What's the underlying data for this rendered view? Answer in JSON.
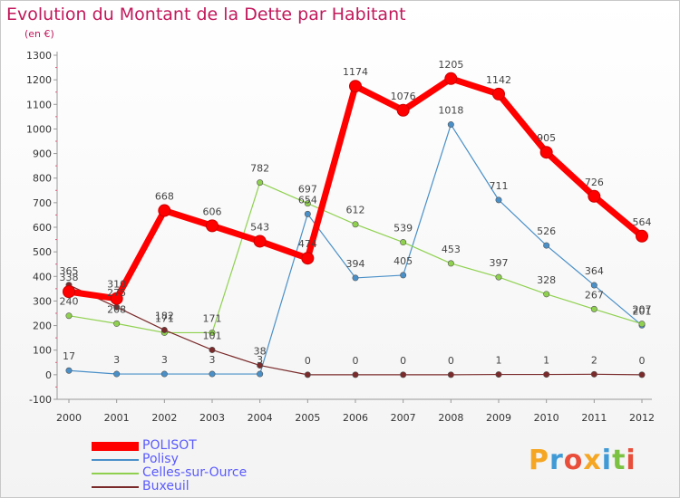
{
  "title": "Evolution du Montant de la Dette par Habitant",
  "subtitle": "(en €)",
  "logo": "Proxiti",
  "chart_data": {
    "type": "line",
    "title": "Evolution du Montant de la Dette par Habitant",
    "subtitle": "(en €)",
    "x": [
      2000,
      2001,
      2002,
      2003,
      2004,
      2005,
      2006,
      2007,
      2008,
      2009,
      2010,
      2011,
      2012
    ],
    "ylim": [
      -100,
      1300
    ],
    "yticks": [
      -100,
      0,
      100,
      200,
      300,
      400,
      500,
      600,
      700,
      800,
      900,
      1000,
      1100,
      1200,
      1300
    ],
    "grid": false,
    "legend_position": "bottom-left",
    "series": [
      {
        "name": "POLISOT",
        "color": "#ff0000",
        "values": [
          338,
          310,
          668,
          606,
          543,
          474,
          1174,
          1076,
          1205,
          1142,
          905,
          726,
          564
        ]
      },
      {
        "name": "Polisy",
        "color": "#4a90c8",
        "values": [
          17,
          3,
          3,
          3,
          3,
          654,
          394,
          405,
          1018,
          711,
          526,
          364,
          201
        ]
      },
      {
        "name": "Celles-sur-Ource",
        "color": "#8fd14f",
        "values": [
          240,
          208,
          171,
          171,
          782,
          697,
          612,
          539,
          453,
          397,
          328,
          267,
          207
        ]
      },
      {
        "name": "Buxeuil",
        "color": "#7a2a2a",
        "values": [
          365,
          275,
          182,
          101,
          38,
          0,
          0,
          0,
          0,
          1,
          1,
          2,
          0
        ]
      }
    ]
  }
}
